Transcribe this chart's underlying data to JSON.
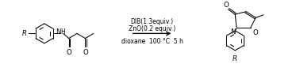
{
  "background_color": "#ffffff",
  "arrow_color": "#000000",
  "line_color": "#000000",
  "text_color": "#000000",
  "reagent_line1": "DIB(1.3equiv.)",
  "reagent_line2": "ZnO(0.2 equiv.)",
  "condition_line": "dioxane  100 °C  5 h",
  "reagent_fontsize": 5.5,
  "condition_fontsize": 5.5,
  "figsize": [
    3.78,
    0.81
  ],
  "dpi": 100,
  "xlim": [
    0,
    10
  ],
  "ylim": [
    0,
    2.15
  ]
}
